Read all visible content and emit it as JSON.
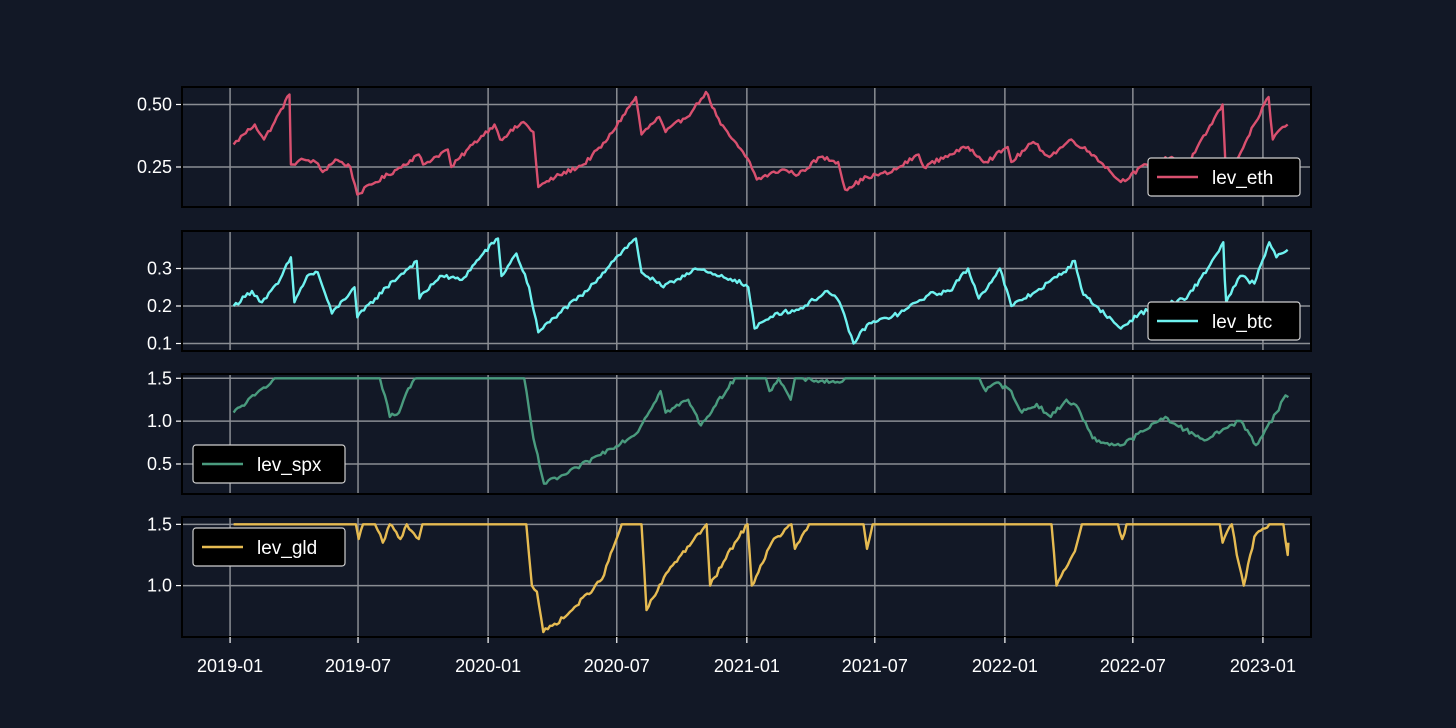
{
  "colors": {
    "background": "#121826",
    "grid": "#8a8d93",
    "axis": "#000000",
    "legend_bg": "#000000",
    "legend_border": "#cfcfcf",
    "text": "#ffffff"
  },
  "chart_data": {
    "type": "line",
    "grid": true,
    "shared_x": true,
    "x_ticks": [
      "2019-01",
      "2019-07",
      "2020-01",
      "2020-07",
      "2021-01",
      "2021-07",
      "2022-01",
      "2022-07",
      "2023-01"
    ],
    "x_range": [
      "2018-10-25",
      "2023-03-10"
    ],
    "panels": [
      {
        "name": "lev_eth",
        "color": "#d9506f",
        "legend_loc": "lower right",
        "ylim": [
          0.09,
          0.57
        ],
        "y_ticks": [
          0.25,
          0.5
        ],
        "y_tick_labels": [
          "0.25",
          "0.50"
        ],
        "points": [
          [
            "2019-01-06",
            0.34
          ],
          [
            "2019-01-20",
            0.38
          ],
          [
            "2019-02-05",
            0.42
          ],
          [
            "2019-02-18",
            0.36
          ],
          [
            "2019-03-05",
            0.43
          ],
          [
            "2019-03-26",
            0.54
          ],
          [
            "2019-03-28",
            0.26
          ],
          [
            "2019-04-15",
            0.28
          ],
          [
            "2019-05-02",
            0.27
          ],
          [
            "2019-05-12",
            0.23
          ],
          [
            "2019-05-30",
            0.28
          ],
          [
            "2019-06-20",
            0.25
          ],
          [
            "2019-06-30",
            0.14
          ],
          [
            "2019-07-20",
            0.18
          ],
          [
            "2019-08-25",
            0.24
          ],
          [
            "2019-09-25",
            0.3
          ],
          [
            "2019-10-01",
            0.26
          ],
          [
            "2019-11-05",
            0.32
          ],
          [
            "2019-11-10",
            0.25
          ],
          [
            "2019-12-10",
            0.34
          ],
          [
            "2020-01-10",
            0.42
          ],
          [
            "2020-01-18",
            0.36
          ],
          [
            "2020-02-20",
            0.43
          ],
          [
            "2020-03-05",
            0.39
          ],
          [
            "2020-03-12",
            0.17
          ],
          [
            "2020-04-05",
            0.21
          ],
          [
            "2020-05-15",
            0.26
          ],
          [
            "2020-06-15",
            0.35
          ],
          [
            "2020-07-28",
            0.53
          ],
          [
            "2020-08-05",
            0.38
          ],
          [
            "2020-08-30",
            0.45
          ],
          [
            "2020-09-08",
            0.39
          ],
          [
            "2020-10-15",
            0.47
          ],
          [
            "2020-11-04",
            0.55
          ],
          [
            "2020-11-25",
            0.42
          ],
          [
            "2020-12-20",
            0.33
          ],
          [
            "2021-01-05",
            0.27
          ],
          [
            "2021-01-15",
            0.2
          ],
          [
            "2021-02-20",
            0.24
          ],
          [
            "2021-03-15",
            0.22
          ],
          [
            "2021-04-15",
            0.29
          ],
          [
            "2021-05-10",
            0.27
          ],
          [
            "2021-05-20",
            0.16
          ],
          [
            "2021-06-20",
            0.21
          ],
          [
            "2021-07-25",
            0.23
          ],
          [
            "2021-09-01",
            0.3
          ],
          [
            "2021-09-08",
            0.25
          ],
          [
            "2021-10-15",
            0.3
          ],
          [
            "2021-11-10",
            0.33
          ],
          [
            "2021-12-05",
            0.27
          ],
          [
            "2022-01-05",
            0.33
          ],
          [
            "2022-01-10",
            0.27
          ],
          [
            "2022-02-10",
            0.35
          ],
          [
            "2022-03-05",
            0.29
          ],
          [
            "2022-04-05",
            0.36
          ],
          [
            "2022-05-10",
            0.29
          ],
          [
            "2022-06-14",
            0.19
          ],
          [
            "2022-07-20",
            0.26
          ],
          [
            "2022-08-25",
            0.29
          ],
          [
            "2022-09-15",
            0.25
          ],
          [
            "2022-11-05",
            0.5
          ],
          [
            "2022-11-10",
            0.2
          ],
          [
            "2023-01-09",
            0.53
          ],
          [
            "2023-01-15",
            0.36
          ],
          [
            "2023-01-25",
            0.4
          ],
          [
            "2023-02-05",
            0.42
          ]
        ]
      },
      {
        "name": "lev_btc",
        "color": "#6ff2f0",
        "legend_loc": "lower right",
        "ylim": [
          0.08,
          0.4
        ],
        "y_ticks": [
          0.1,
          0.2,
          0.3
        ],
        "y_tick_labels": [
          "0.1",
          "0.2",
          "0.3"
        ],
        "points": [
          [
            "2019-01-06",
            0.2
          ],
          [
            "2019-02-01",
            0.24
          ],
          [
            "2019-02-15",
            0.21
          ],
          [
            "2019-03-10",
            0.26
          ],
          [
            "2019-03-28",
            0.33
          ],
          [
            "2019-04-02",
            0.21
          ],
          [
            "2019-04-20",
            0.28
          ],
          [
            "2019-05-05",
            0.29
          ],
          [
            "2019-05-25",
            0.18
          ],
          [
            "2019-06-26",
            0.25
          ],
          [
            "2019-06-30",
            0.17
          ],
          [
            "2019-08-10",
            0.25
          ],
          [
            "2019-09-22",
            0.32
          ],
          [
            "2019-09-26",
            0.22
          ],
          [
            "2019-10-25",
            0.28
          ],
          [
            "2019-11-25",
            0.27
          ],
          [
            "2019-12-25",
            0.34
          ],
          [
            "2020-01-15",
            0.38
          ],
          [
            "2020-01-20",
            0.28
          ],
          [
            "2020-02-10",
            0.34
          ],
          [
            "2020-02-28",
            0.25
          ],
          [
            "2020-03-12",
            0.13
          ],
          [
            "2020-04-10",
            0.18
          ],
          [
            "2020-05-20",
            0.24
          ],
          [
            "2020-06-30",
            0.33
          ],
          [
            "2020-07-28",
            0.38
          ],
          [
            "2020-08-05",
            0.29
          ],
          [
            "2020-09-05",
            0.25
          ],
          [
            "2020-10-20",
            0.3
          ],
          [
            "2020-11-20",
            0.28
          ],
          [
            "2020-12-15",
            0.27
          ],
          [
            "2021-01-03",
            0.25
          ],
          [
            "2021-01-12",
            0.14
          ],
          [
            "2021-02-10",
            0.18
          ],
          [
            "2021-03-15",
            0.19
          ],
          [
            "2021-04-25",
            0.24
          ],
          [
            "2021-05-12",
            0.21
          ],
          [
            "2021-06-01",
            0.1
          ],
          [
            "2021-06-20",
            0.15
          ],
          [
            "2021-08-05",
            0.18
          ],
          [
            "2021-09-15",
            0.23
          ],
          [
            "2021-10-15",
            0.24
          ],
          [
            "2021-11-10",
            0.3
          ],
          [
            "2021-11-25",
            0.22
          ],
          [
            "2021-12-25",
            0.3
          ],
          [
            "2022-01-10",
            0.2
          ],
          [
            "2022-02-15",
            0.24
          ],
          [
            "2022-03-25",
            0.29
          ],
          [
            "2022-04-10",
            0.32
          ],
          [
            "2022-04-22",
            0.23
          ],
          [
            "2022-05-10",
            0.2
          ],
          [
            "2022-06-14",
            0.14
          ],
          [
            "2022-07-10",
            0.18
          ],
          [
            "2022-08-10",
            0.2
          ],
          [
            "2022-09-15",
            0.22
          ],
          [
            "2022-10-15",
            0.3
          ],
          [
            "2022-11-06",
            0.37
          ],
          [
            "2022-11-08",
            0.27
          ],
          [
            "2022-11-10",
            0.21
          ],
          [
            "2022-11-30",
            0.28
          ],
          [
            "2022-12-20",
            0.26
          ],
          [
            "2023-01-10",
            0.37
          ],
          [
            "2023-01-20",
            0.33
          ],
          [
            "2023-02-05",
            0.35
          ]
        ]
      },
      {
        "name": "lev_spx",
        "color": "#4a9b7e",
        "legend_loc": "lower left",
        "ylim": [
          0.15,
          1.55
        ],
        "y_ticks": [
          0.5,
          1.0,
          1.5
        ],
        "y_tick_labels": [
          "0.5",
          "1.0",
          "1.5"
        ],
        "points": [
          [
            "2019-01-06",
            1.1
          ],
          [
            "2019-02-05",
            1.3
          ],
          [
            "2019-03-05",
            1.5
          ],
          [
            "2019-08-01",
            1.5
          ],
          [
            "2019-08-08",
            1.3
          ],
          [
            "2019-08-15",
            1.05
          ],
          [
            "2019-08-28",
            1.1
          ],
          [
            "2019-09-10",
            1.38
          ],
          [
            "2019-09-22",
            1.5
          ],
          [
            "2020-02-21",
            1.5
          ],
          [
            "2020-03-05",
            0.8
          ],
          [
            "2020-03-20",
            0.27
          ],
          [
            "2020-04-20",
            0.38
          ],
          [
            "2020-06-05",
            0.6
          ],
          [
            "2020-07-28",
            0.85
          ],
          [
            "2020-09-01",
            1.35
          ],
          [
            "2020-09-08",
            1.1
          ],
          [
            "2020-10-10",
            1.25
          ],
          [
            "2020-10-28",
            0.95
          ],
          [
            "2020-12-15",
            1.5
          ],
          [
            "2021-01-28",
            1.5
          ],
          [
            "2021-02-02",
            1.35
          ],
          [
            "2021-02-15",
            1.5
          ],
          [
            "2021-03-04",
            1.25
          ],
          [
            "2021-03-10",
            1.5
          ],
          [
            "2021-05-12",
            1.45
          ],
          [
            "2021-05-20",
            1.5
          ],
          [
            "2021-11-26",
            1.5
          ],
          [
            "2021-12-05",
            1.35
          ],
          [
            "2021-12-20",
            1.45
          ],
          [
            "2022-01-10",
            1.35
          ],
          [
            "2022-01-25",
            1.1
          ],
          [
            "2022-02-15",
            1.2
          ],
          [
            "2022-03-07",
            1.05
          ],
          [
            "2022-03-29",
            1.25
          ],
          [
            "2022-04-15",
            1.15
          ],
          [
            "2022-05-05",
            0.8
          ],
          [
            "2022-05-20",
            0.75
          ],
          [
            "2022-06-16",
            0.72
          ],
          [
            "2022-07-15",
            0.88
          ],
          [
            "2022-08-16",
            1.05
          ],
          [
            "2022-09-01",
            0.95
          ],
          [
            "2022-09-25",
            0.85
          ],
          [
            "2022-10-13",
            0.78
          ],
          [
            "2022-11-15",
            0.95
          ],
          [
            "2022-12-01",
            1.0
          ],
          [
            "2022-12-22",
            0.72
          ],
          [
            "2023-01-20",
            1.1
          ],
          [
            "2023-02-02",
            1.3
          ],
          [
            "2023-02-06",
            1.28
          ]
        ]
      },
      {
        "name": "lev_gld",
        "color": "#e6bb52",
        "legend_loc": "upper left",
        "ylim": [
          0.58,
          1.56
        ],
        "y_ticks": [
          1.0,
          1.5
        ],
        "y_tick_labels": [
          "1.0",
          "1.5"
        ],
        "points": [
          [
            "2019-01-06",
            1.5
          ],
          [
            "2019-06-28",
            1.5
          ],
          [
            "2019-07-02",
            1.38
          ],
          [
            "2019-07-08",
            1.5
          ],
          [
            "2019-07-25",
            1.5
          ],
          [
            "2019-08-05",
            1.35
          ],
          [
            "2019-08-15",
            1.5
          ],
          [
            "2019-08-30",
            1.38
          ],
          [
            "2019-09-08",
            1.5
          ],
          [
            "2019-09-25",
            1.38
          ],
          [
            "2019-09-30",
            1.5
          ],
          [
            "2020-02-24",
            1.5
          ],
          [
            "2020-03-03",
            1.0
          ],
          [
            "2020-03-10",
            0.95
          ],
          [
            "2020-03-19",
            0.62
          ],
          [
            "2020-04-20",
            0.75
          ],
          [
            "2020-06-10",
            1.05
          ],
          [
            "2020-07-08",
            1.5
          ],
          [
            "2020-08-05",
            1.5
          ],
          [
            "2020-08-12",
            0.8
          ],
          [
            "2020-09-15",
            1.15
          ],
          [
            "2020-10-15",
            1.35
          ],
          [
            "2020-11-05",
            1.5
          ],
          [
            "2020-11-10",
            1.0
          ],
          [
            "2020-12-15",
            1.35
          ],
          [
            "2021-01-02",
            1.5
          ],
          [
            "2021-01-08",
            1.0
          ],
          [
            "2021-02-05",
            1.35
          ],
          [
            "2021-03-05",
            1.5
          ],
          [
            "2021-03-10",
            1.3
          ],
          [
            "2021-03-30",
            1.5
          ],
          [
            "2021-06-15",
            1.5
          ],
          [
            "2021-06-20",
            1.3
          ],
          [
            "2021-06-28",
            1.5
          ],
          [
            "2022-03-08",
            1.5
          ],
          [
            "2022-03-15",
            1.0
          ],
          [
            "2022-04-10",
            1.28
          ],
          [
            "2022-04-20",
            1.5
          ],
          [
            "2022-06-10",
            1.5
          ],
          [
            "2022-06-16",
            1.38
          ],
          [
            "2022-06-22",
            1.5
          ],
          [
            "2022-11-01",
            1.5
          ],
          [
            "2022-11-05",
            1.35
          ],
          [
            "2022-11-18",
            1.5
          ],
          [
            "2022-11-25",
            1.25
          ],
          [
            "2022-12-05",
            1.0
          ],
          [
            "2022-12-20",
            1.4
          ],
          [
            "2023-01-10",
            1.5
          ],
          [
            "2023-01-30",
            1.5
          ],
          [
            "2023-02-05",
            1.25
          ],
          [
            "2023-02-06",
            1.35
          ]
        ]
      }
    ]
  }
}
